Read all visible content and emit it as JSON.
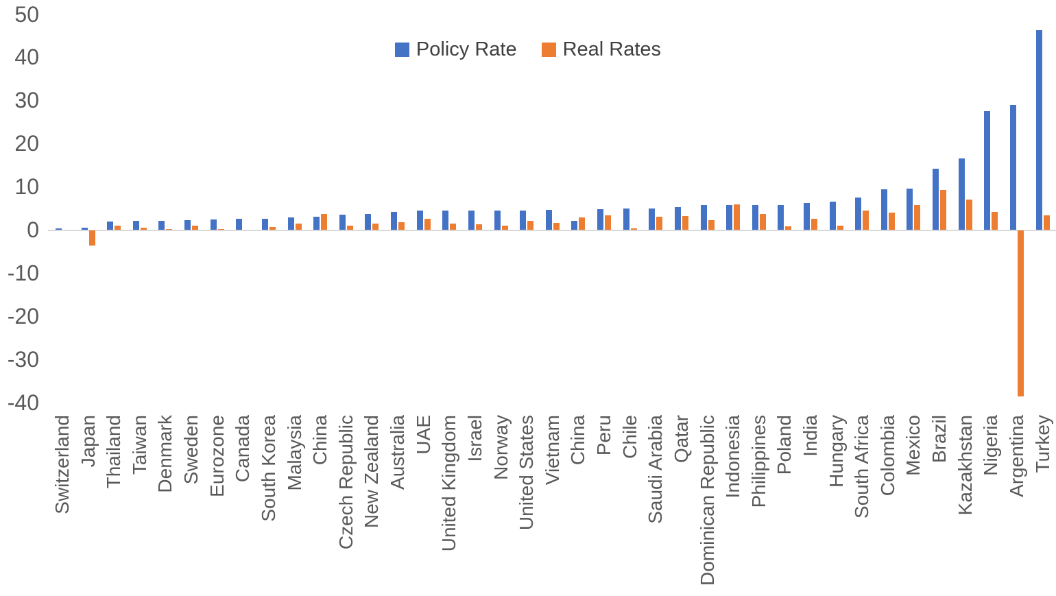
{
  "chart_data": {
    "type": "bar",
    "title": "",
    "xlabel": "",
    "ylabel": "",
    "categories": [
      "Switzerland",
      "Japan",
      "Thailand",
      "Taiwan",
      "Denmark",
      "Sweden",
      "Eurozone",
      "Canada",
      "South Korea",
      "Malaysia",
      "China",
      "Czech Republic",
      "New Zealand",
      "Australia",
      "UAE",
      "United Kingdom",
      "Israel",
      "Norway",
      "United States",
      "Vietnam",
      "China",
      "Peru",
      "Chile",
      "Saudi Arabia",
      "Qatar",
      "Dominican Republic",
      "Indonesia",
      "Philippines",
      "Poland",
      "India",
      "Hungary",
      "South Africa",
      "Colombia",
      "Mexico",
      "Brazil",
      "Kazakhstan",
      "Nigeria",
      "Argentina",
      "Turkey"
    ],
    "series": [
      {
        "name": "Policy Rate",
        "color": "#4472C4",
        "values": [
          0.3,
          0.5,
          1.9,
          2.0,
          2.1,
          2.2,
          2.4,
          2.6,
          2.6,
          2.9,
          3.0,
          3.5,
          3.6,
          4.1,
          4.4,
          4.4,
          4.5,
          4.5,
          4.5,
          4.6,
          2.1,
          4.7,
          5.0,
          5.0,
          5.3,
          5.8,
          5.8,
          5.8,
          5.8,
          6.2,
          6.5,
          7.5,
          9.4,
          9.5,
          14.1,
          16.5,
          27.5,
          29.0,
          46.2
        ]
      },
      {
        "name": "Real Rates",
        "color": "#ED7D31",
        "values": [
          0.0,
          -3.5,
          1.0,
          0.4,
          0.1,
          1.0,
          0.2,
          0.0,
          0.7,
          1.4,
          3.7,
          0.9,
          1.5,
          1.7,
          2.5,
          1.5,
          1.2,
          0.9,
          2.0,
          1.6,
          2.8,
          3.3,
          0.3,
          3.1,
          3.2,
          2.2,
          5.9,
          3.7,
          0.8,
          2.6,
          1.0,
          4.4,
          4.0,
          5.7,
          9.2,
          7.0,
          4.1,
          -38.4,
          3.3
        ]
      }
    ],
    "ylim": [
      -40,
      50
    ],
    "yticks": [
      50,
      40,
      30,
      20,
      10,
      0,
      -10,
      -20,
      -30,
      -40
    ],
    "grid": false,
    "legend_position": "top-center",
    "axis_text_color": "#595959",
    "legend_text_color": "#404040",
    "axis_line_color": "#D9D9D9",
    "background_color": "#FFFFFF"
  }
}
